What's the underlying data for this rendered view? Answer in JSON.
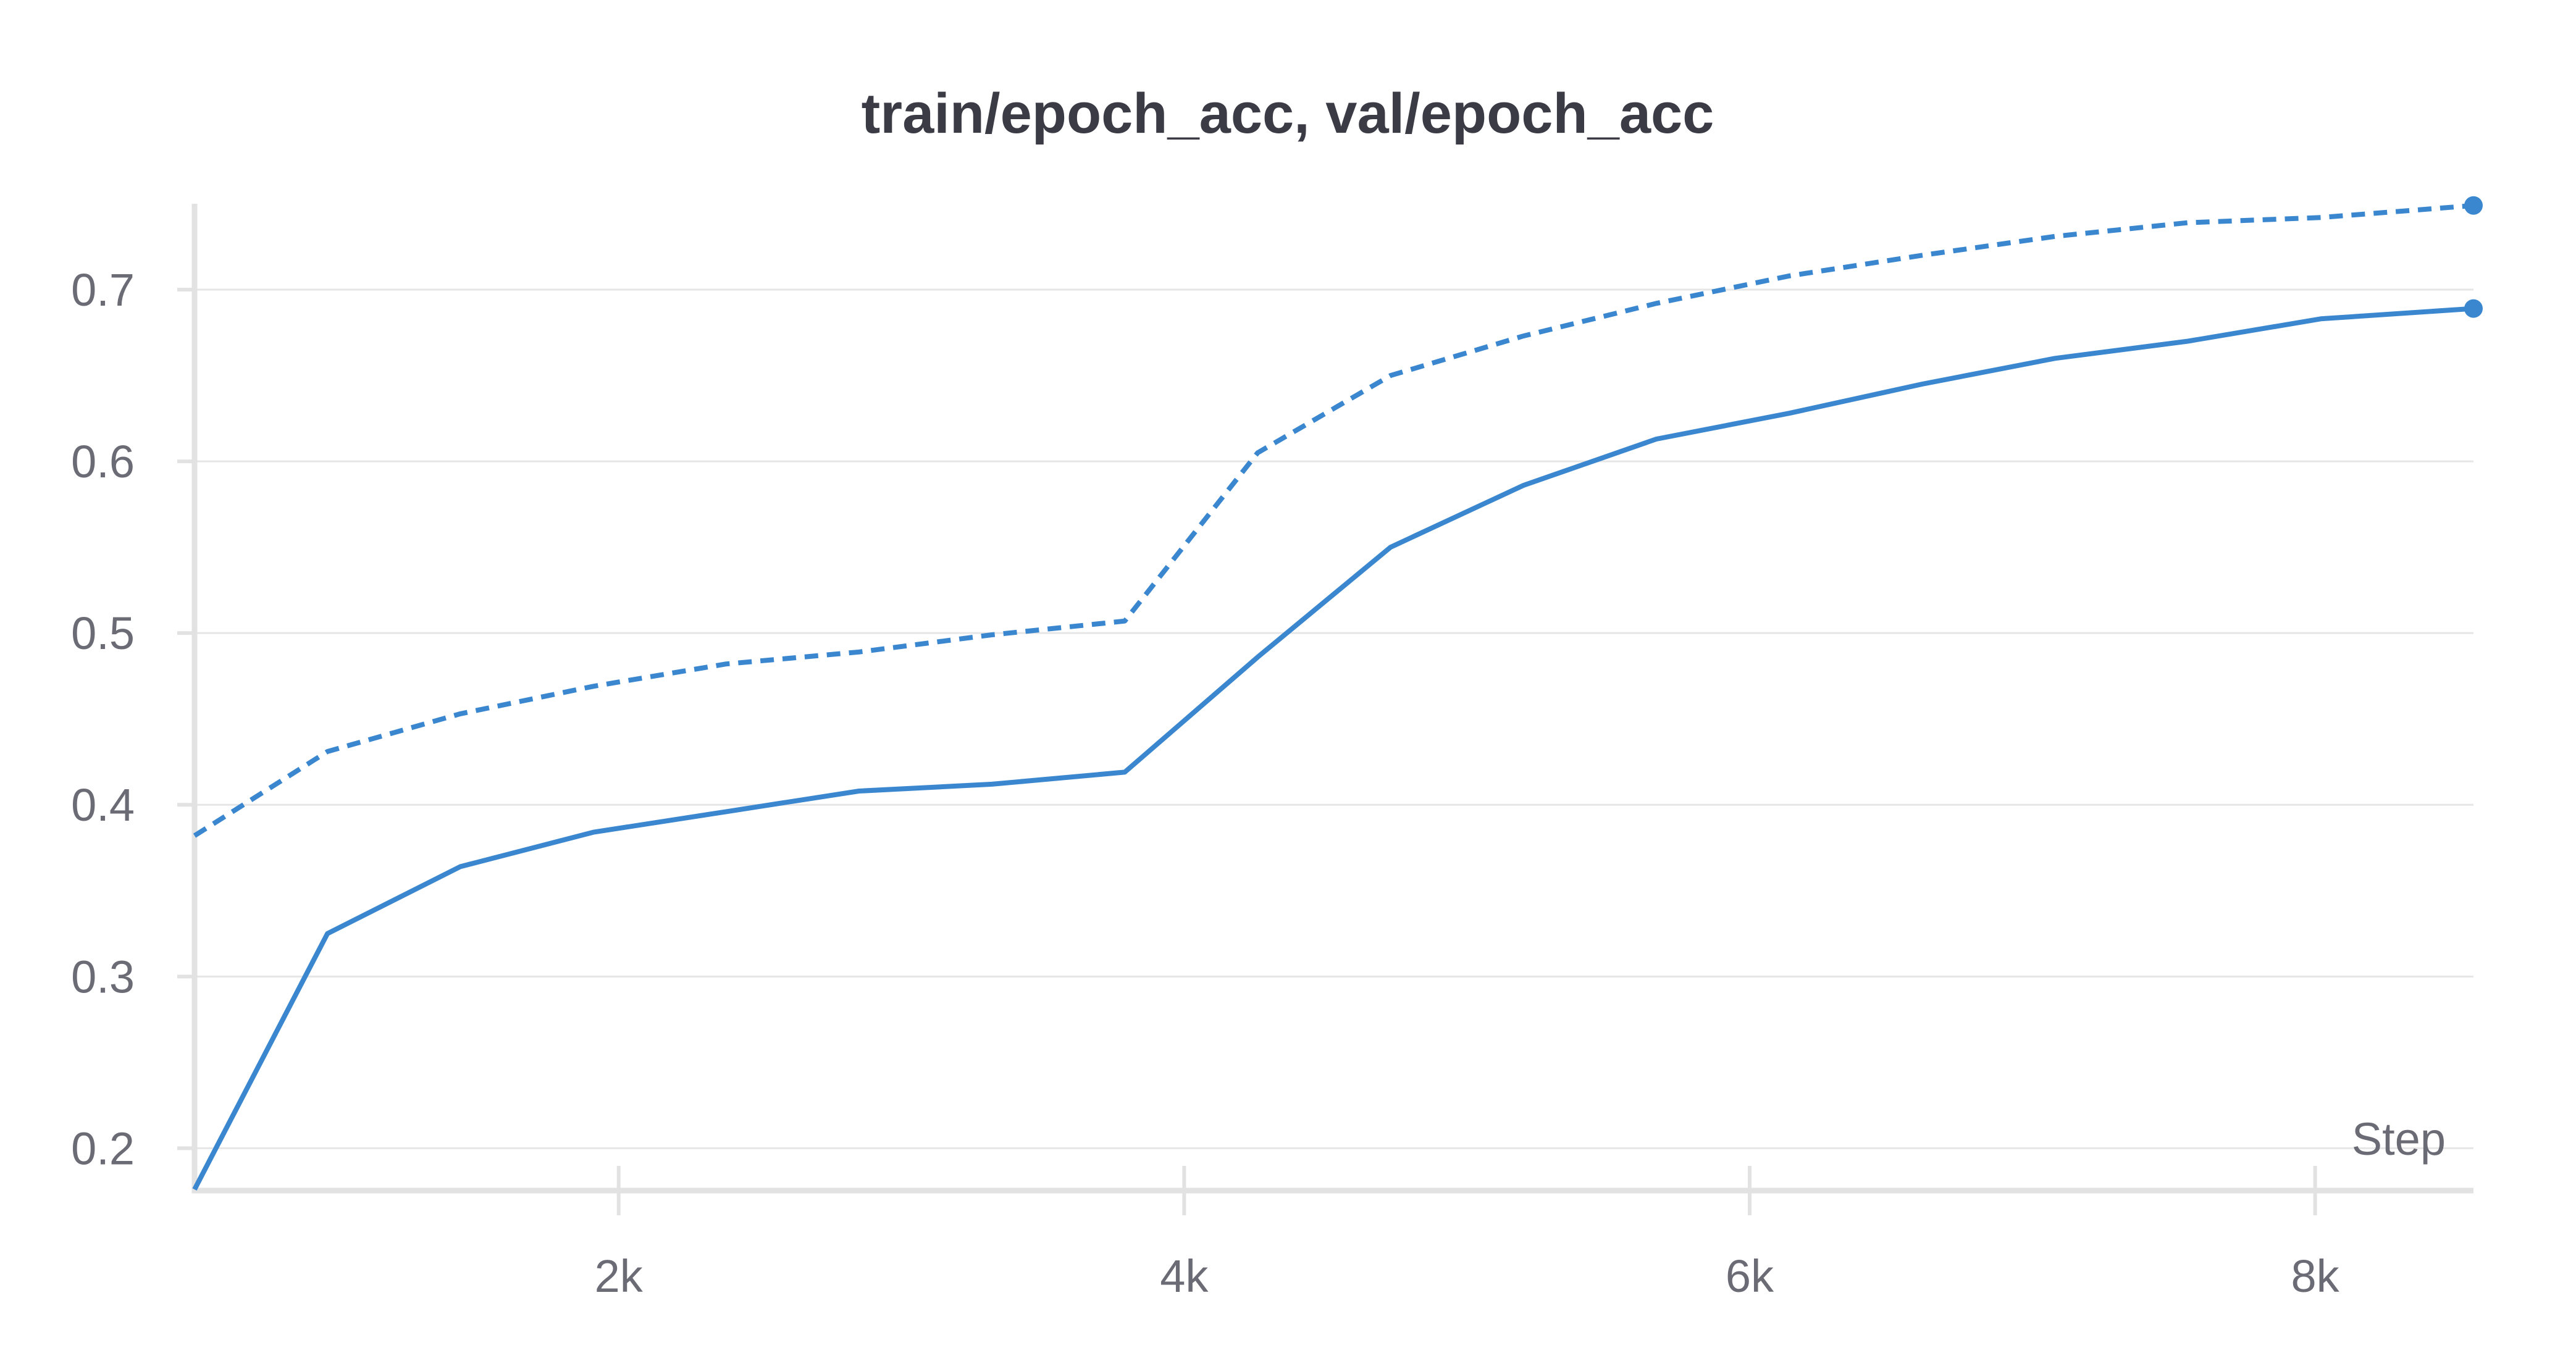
{
  "chart_data": {
    "type": "line",
    "title": "train/epoch_acc, val/epoch_acc",
    "xlabel": "Step",
    "ylabel": "",
    "xlim": [
      500,
      8560
    ],
    "ylim": [
      0.18,
      0.75
    ],
    "x_ticks": [
      {
        "value": 2000,
        "label": "2k"
      },
      {
        "value": 4000,
        "label": "4k"
      },
      {
        "value": 6000,
        "label": "6k"
      },
      {
        "value": 8000,
        "label": "8k"
      }
    ],
    "y_ticks": [
      {
        "value": 0.2,
        "label": "0.2"
      },
      {
        "value": 0.3,
        "label": "0.3"
      },
      {
        "value": 0.4,
        "label": "0.4"
      },
      {
        "value": 0.5,
        "label": "0.5"
      },
      {
        "value": 0.6,
        "label": "0.6"
      },
      {
        "value": 0.7,
        "label": "0.7"
      }
    ],
    "grid": true,
    "legend": "none",
    "series": [
      {
        "style": "solid",
        "color": "#3a87d0",
        "x": [
          500,
          970,
          1440,
          1910,
          2380,
          2850,
          3320,
          3790,
          4260,
          4730,
          5200,
          5670,
          6140,
          6610,
          7080,
          7550,
          8020,
          8560
        ],
        "y": [
          0.176,
          0.325,
          0.364,
          0.384,
          0.396,
          0.408,
          0.412,
          0.419,
          0.486,
          0.55,
          0.586,
          0.613,
          0.628,
          0.645,
          0.66,
          0.67,
          0.683,
          0.689
        ]
      },
      {
        "style": "dashed",
        "color": "#3a87d0",
        "x": [
          500,
          970,
          1440,
          1910,
          2380,
          2850,
          3320,
          3790,
          4260,
          4730,
          5200,
          5670,
          6140,
          6610,
          7080,
          7550,
          8020,
          8560
        ],
        "y": [
          0.382,
          0.431,
          0.453,
          0.469,
          0.482,
          0.489,
          0.499,
          0.507,
          0.605,
          0.65,
          0.673,
          0.692,
          0.708,
          0.72,
          0.731,
          0.739,
          0.742,
          0.749
        ]
      }
    ]
  }
}
